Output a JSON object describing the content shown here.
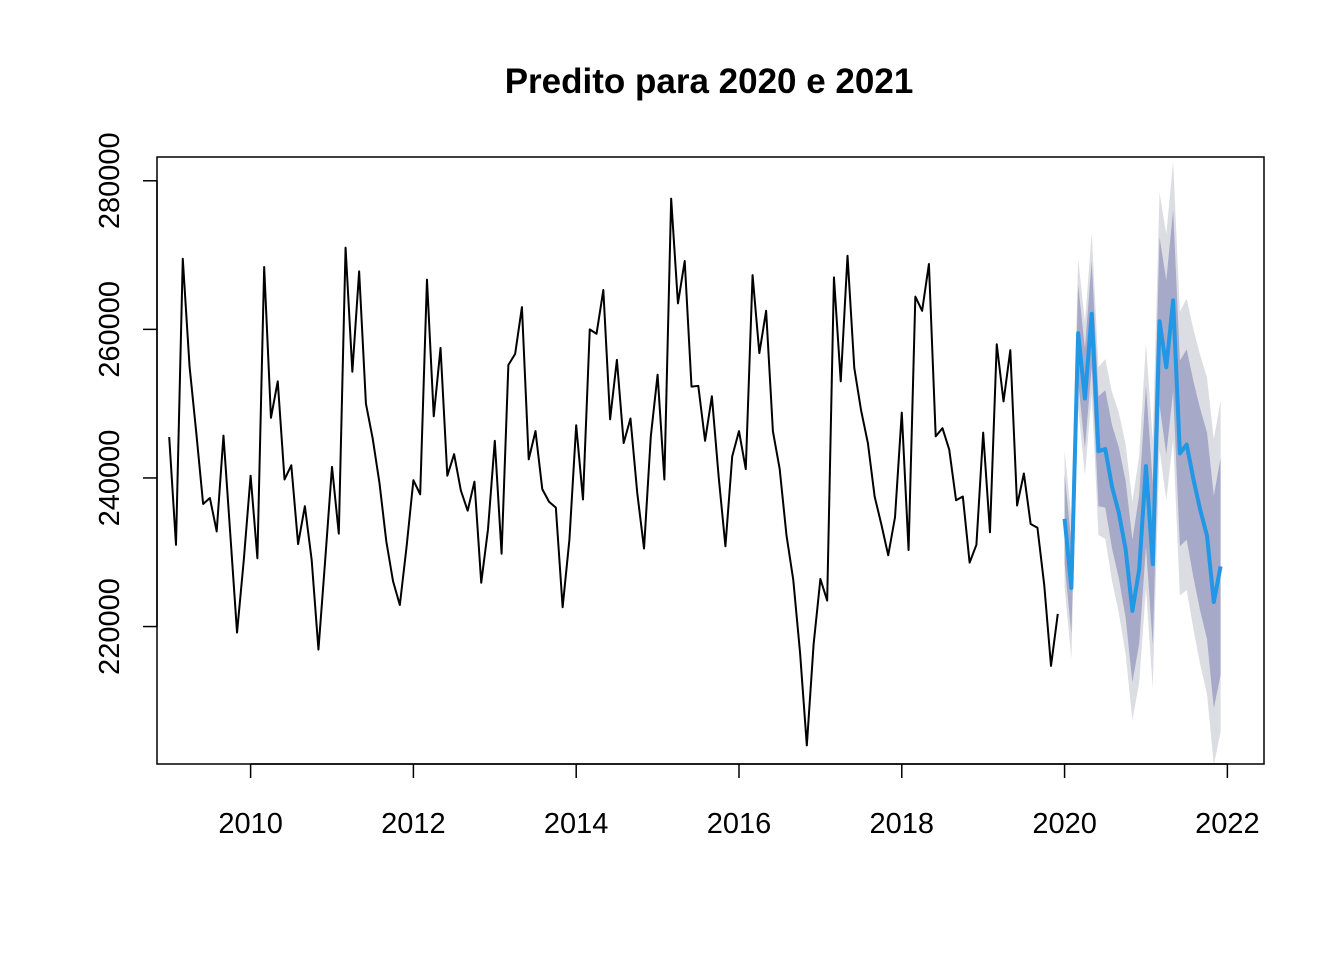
{
  "chart_data": {
    "type": "line",
    "title": "Predito para 2020 e 2021",
    "xlabel": "",
    "ylabel": "",
    "xlim": [
      2008.85,
      2022.45
    ],
    "ylim": [
      201500,
      283200
    ],
    "x_ticks": [
      2010,
      2012,
      2014,
      2016,
      2018,
      2020,
      2022
    ],
    "x_tick_labels": [
      "2010",
      "2012",
      "2014",
      "2016",
      "2018",
      "2020",
      "2022"
    ],
    "y_ticks": [
      220000,
      240000,
      260000,
      280000
    ],
    "y_tick_labels": [
      "220000",
      "240000",
      "260000",
      "280000"
    ],
    "grid": false,
    "legend": "none",
    "colors": {
      "observed": "#000000",
      "forecast": "#2297e6",
      "band80": "#a6a9c8",
      "band95": "#dcdce3"
    },
    "observed": {
      "start_year": 2009,
      "frequency": 12,
      "values": [
        245500,
        231000,
        269500,
        255000,
        246000,
        236500,
        237300,
        232800,
        245700,
        232500,
        219200,
        229000,
        240300,
        229200,
        268400,
        248100,
        253000,
        239800,
        241700,
        231100,
        236200,
        229000,
        216900,
        229000,
        241500,
        232500,
        271000,
        254300,
        267800,
        250000,
        245300,
        239300,
        231500,
        226100,
        222900,
        230800,
        239700,
        237800,
        266700,
        248300,
        257500,
        240300,
        243200,
        238300,
        235600,
        239500,
        225900,
        233100,
        245000,
        229800,
        255200,
        256700,
        263000,
        242500,
        246300,
        238500,
        236800,
        236000,
        222600,
        231700,
        247100,
        237100,
        260000,
        259400,
        265300,
        247900,
        255900,
        244700,
        248000,
        238000,
        230500,
        245600,
        253900,
        239800,
        277600,
        263500,
        269200,
        252300,
        252400,
        245000,
        251000,
        240200,
        230800,
        242900,
        246300,
        241200,
        267300,
        256800,
        262500,
        246300,
        241200,
        232300,
        226300,
        216500,
        204000,
        217600,
        226400,
        223500,
        267000,
        253000,
        269900,
        254800,
        249100,
        244700,
        237500,
        233700,
        229600,
        234700,
        248800,
        230300,
        264400,
        262500,
        268800,
        245600,
        246700,
        243800,
        237000,
        237500,
        228600,
        231000,
        246100,
        232700,
        258000,
        250300,
        257200,
        236300,
        240600,
        233800,
        233300,
        225600,
        214700,
        221700
      ]
    },
    "forecast": {
      "start_year": 2020,
      "frequency": 12,
      "mean": [
        234500,
        225200,
        259500,
        250700,
        262100,
        243600,
        243900,
        238800,
        235300,
        230400,
        222100,
        227700,
        241600,
        228400,
        261100,
        254900,
        263900,
        243300,
        244500,
        239800,
        235700,
        232200,
        223300,
        228100
      ],
      "lo80": [
        228500,
        219000,
        253000,
        244000,
        255000,
        236200,
        236000,
        230500,
        226500,
        221200,
        212500,
        217700,
        230800,
        217500,
        249800,
        243200,
        251700,
        230800,
        231700,
        226600,
        222100,
        218300,
        209000,
        213500
      ],
      "hi80": [
        240500,
        231400,
        266000,
        257400,
        269200,
        251000,
        251800,
        247100,
        244100,
        239600,
        231700,
        237700,
        252400,
        239300,
        272400,
        266600,
        276100,
        255800,
        257300,
        253000,
        249300,
        246100,
        237600,
        242700
      ],
      "lo95": [
        225300,
        215700,
        249500,
        240400,
        251200,
        232300,
        231800,
        226100,
        221800,
        216300,
        207400,
        212400,
        225100,
        211700,
        243800,
        237000,
        245200,
        224200,
        224900,
        219600,
        214900,
        210900,
        201400,
        205800
      ],
      "hi95": [
        243700,
        234700,
        269500,
        261000,
        273000,
        254900,
        256000,
        251500,
        248800,
        244500,
        236800,
        243000,
        258100,
        245100,
        278400,
        272800,
        282600,
        262400,
        264100,
        260000,
        256500,
        253500,
        245200,
        250400
      ]
    }
  }
}
